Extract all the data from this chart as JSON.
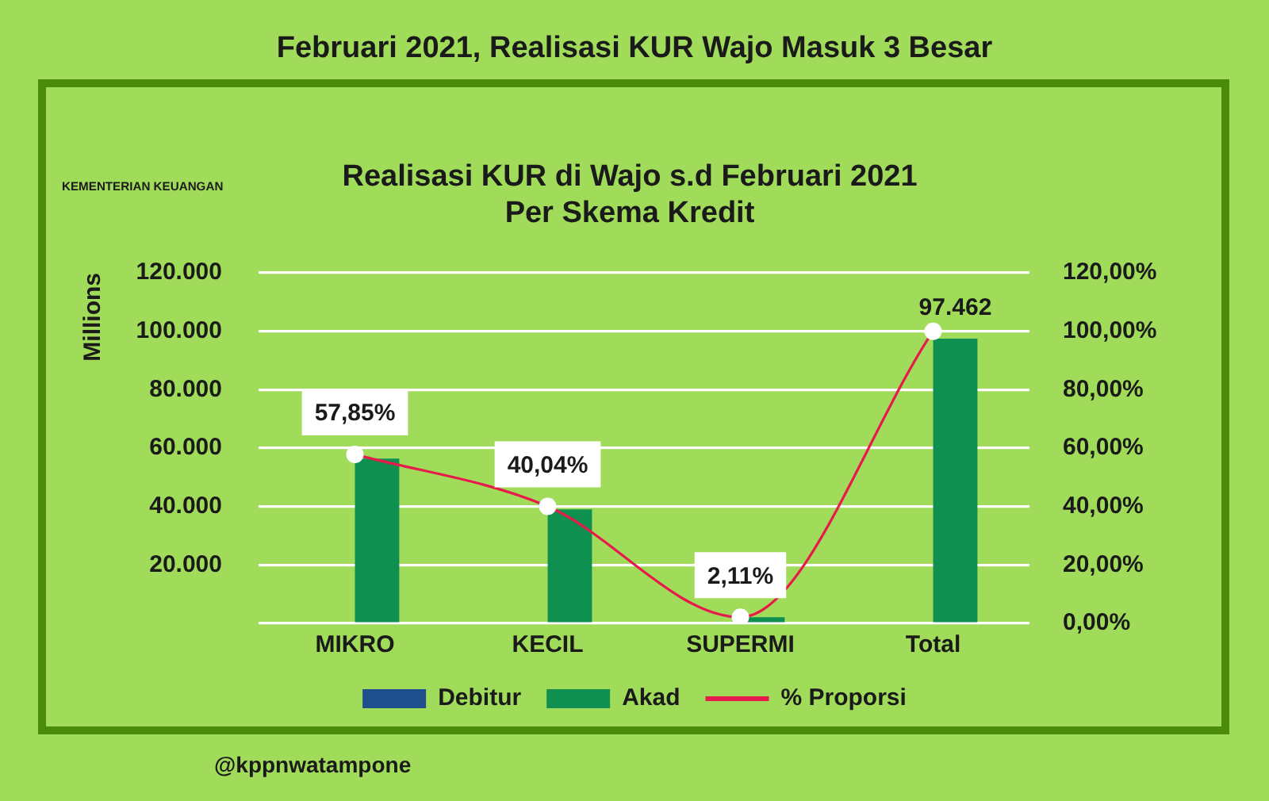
{
  "chart_data": {
    "type": "bar",
    "title": "Februari 2021, Realisasi KUR Wajo Masuk 3 Besar",
    "subtitle": "Realisasi KUR di Wajo s.d Februari 2021\nPer Skema Kredit",
    "ylabel": "Millions",
    "categories": [
      "MIKRO",
      "KECIL",
      "SUPERMI",
      "Total"
    ],
    "series": [
      {
        "name": "Debitur",
        "color": "#1f4e8c",
        "values": [
          null,
          null,
          null,
          null
        ]
      },
      {
        "name": "Akad",
        "color": "#109050",
        "values": [
          56400,
          39000,
          2100,
          97462
        ],
        "value_labels": [
          null,
          null,
          null,
          "97.462"
        ]
      },
      {
        "name": "% Proporsi",
        "type": "line",
        "axis": "y2",
        "color": "#e8194b",
        "values": [
          57.85,
          40.04,
          2.11,
          100
        ],
        "value_labels": [
          "57,85%",
          "40,04%",
          "2,11%",
          null
        ]
      }
    ],
    "ylim": [
      0,
      120000
    ],
    "yticks": [
      {
        "value": 0,
        "label": null
      },
      {
        "value": 20000,
        "label": "20.000"
      },
      {
        "value": 40000,
        "label": "40.000"
      },
      {
        "value": 60000,
        "label": "60.000"
      },
      {
        "value": 80000,
        "label": "80.000"
      },
      {
        "value": 100000,
        "label": "100.000"
      },
      {
        "value": 120000,
        "label": "120.000"
      }
    ],
    "y2lim": [
      0,
      120
    ],
    "y2ticks": [
      {
        "value": 0,
        "label": "0,00%"
      },
      {
        "value": 20,
        "label": "20,00%"
      },
      {
        "value": 40,
        "label": "40,00%"
      },
      {
        "value": 60,
        "label": "60,00%"
      },
      {
        "value": 80,
        "label": "80,00%"
      },
      {
        "value": 100,
        "label": "100,00%"
      },
      {
        "value": 120,
        "label": "120,00%"
      }
    ],
    "grid": "y",
    "legend": "bottom",
    "marker": "circle",
    "annotations": [
      "KEMENTERIAN KEUANGAN",
      "@kppnwatampone"
    ]
  }
}
